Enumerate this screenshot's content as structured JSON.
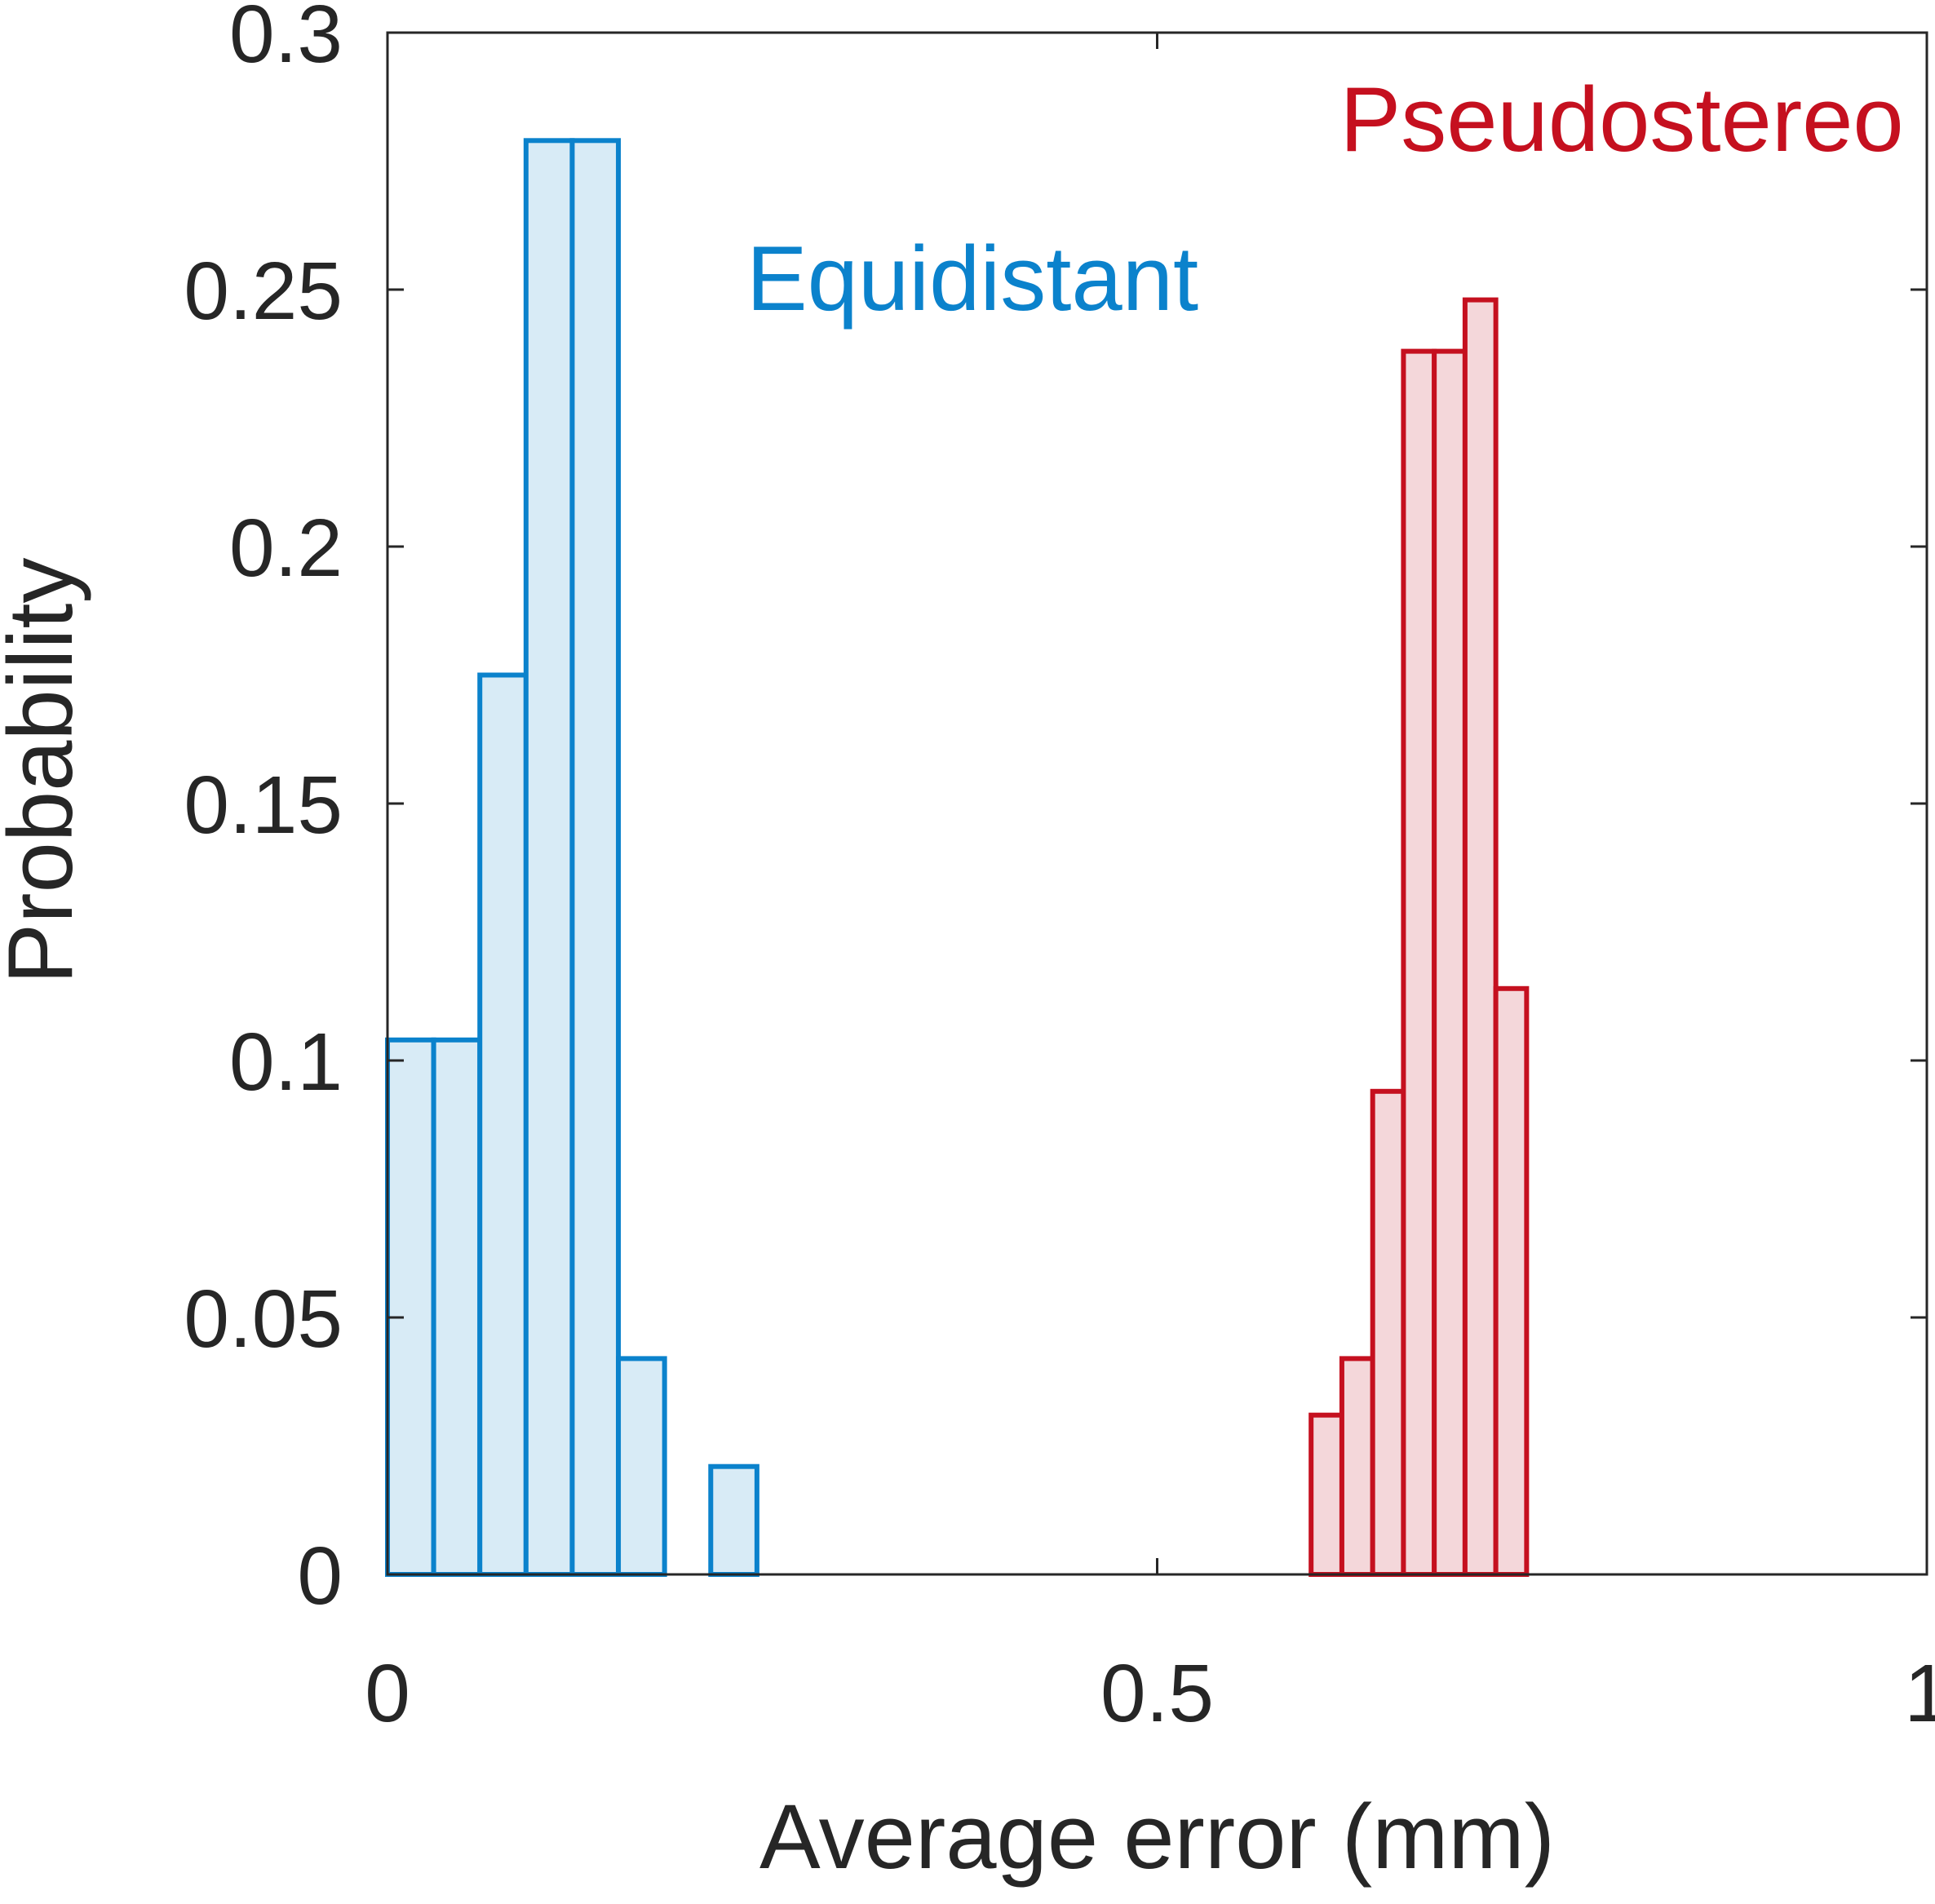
{
  "chart_data": {
    "type": "bar",
    "xlabel": "Average error (mm)",
    "ylabel": "Probability",
    "xlim": [
      0,
      1
    ],
    "ylim": [
      0,
      0.3
    ],
    "x_ticks": [
      0,
      0.5,
      1
    ],
    "x_tick_labels": [
      "0",
      "0.5",
      "1"
    ],
    "y_ticks": [
      0,
      0.05,
      0.1,
      0.15,
      0.2,
      0.25,
      0.3
    ],
    "y_tick_labels": [
      "0",
      "0.05",
      "0.1",
      "0.15",
      "0.2",
      "0.25",
      "0.3"
    ],
    "grid": false,
    "series": [
      {
        "name": "Equidistant",
        "label": "Equidistant",
        "edge_color": "#0b82cc",
        "fill_color": "#d8ebf6",
        "bin_edges": [
          0,
          0.03,
          0.06,
          0.09,
          0.12,
          0.15,
          0.18,
          0.21,
          0.24
        ],
        "values": [
          0.104,
          0.104,
          0.175,
          0.279,
          0.279,
          0.042,
          0.0,
          0.021
        ]
      },
      {
        "name": "Pseudostereo",
        "label": "Pseudostereo",
        "edge_color": "#c5101f",
        "fill_color": "#f4d7da",
        "bin_edges": [
          0.6,
          0.62,
          0.64,
          0.66,
          0.68,
          0.7,
          0.72,
          0.74
        ],
        "values": [
          0.031,
          0.042,
          0.094,
          0.238,
          0.238,
          0.248,
          0.114
        ]
      }
    ]
  }
}
